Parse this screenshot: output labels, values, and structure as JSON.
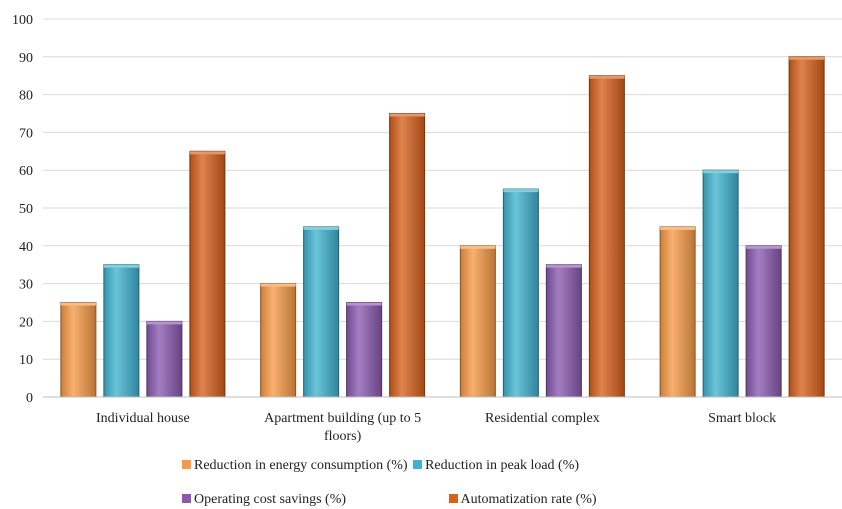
{
  "chart_data": {
    "type": "bar",
    "categories": [
      "Individual house",
      "Apartment building (up to 5 floors)",
      "Residential complex",
      "Smart block"
    ],
    "category_lines": [
      [
        "Individual house"
      ],
      [
        "Apartment building (up to 5",
        "floors)"
      ],
      [
        "Residential complex"
      ],
      [
        "Smart block"
      ]
    ],
    "series": [
      {
        "name": "Reduction in energy consumption (%)",
        "values": [
          25,
          30,
          40,
          45
        ],
        "color": "#f79a46"
      },
      {
        "name": "Reduction in peak load (%)",
        "values": [
          35,
          45,
          55,
          60
        ],
        "color": "#40b3d0"
      },
      {
        "name": "Operating cost savings (%)",
        "values": [
          20,
          25,
          35,
          40
        ],
        "color": "#8a5ab0"
      },
      {
        "name": "Automatization rate (%)",
        "values": [
          65,
          75,
          85,
          90
        ],
        "color": "#d6601c"
      }
    ],
    "ylim": [
      0,
      100
    ],
    "yticks": [
      "0",
      "10",
      "20",
      "30",
      "40",
      "50",
      "60",
      "70",
      "80",
      "90",
      "100"
    ],
    "grid": true,
    "legend_position": "bottom",
    "title": "",
    "xlabel": "",
    "ylabel": ""
  }
}
